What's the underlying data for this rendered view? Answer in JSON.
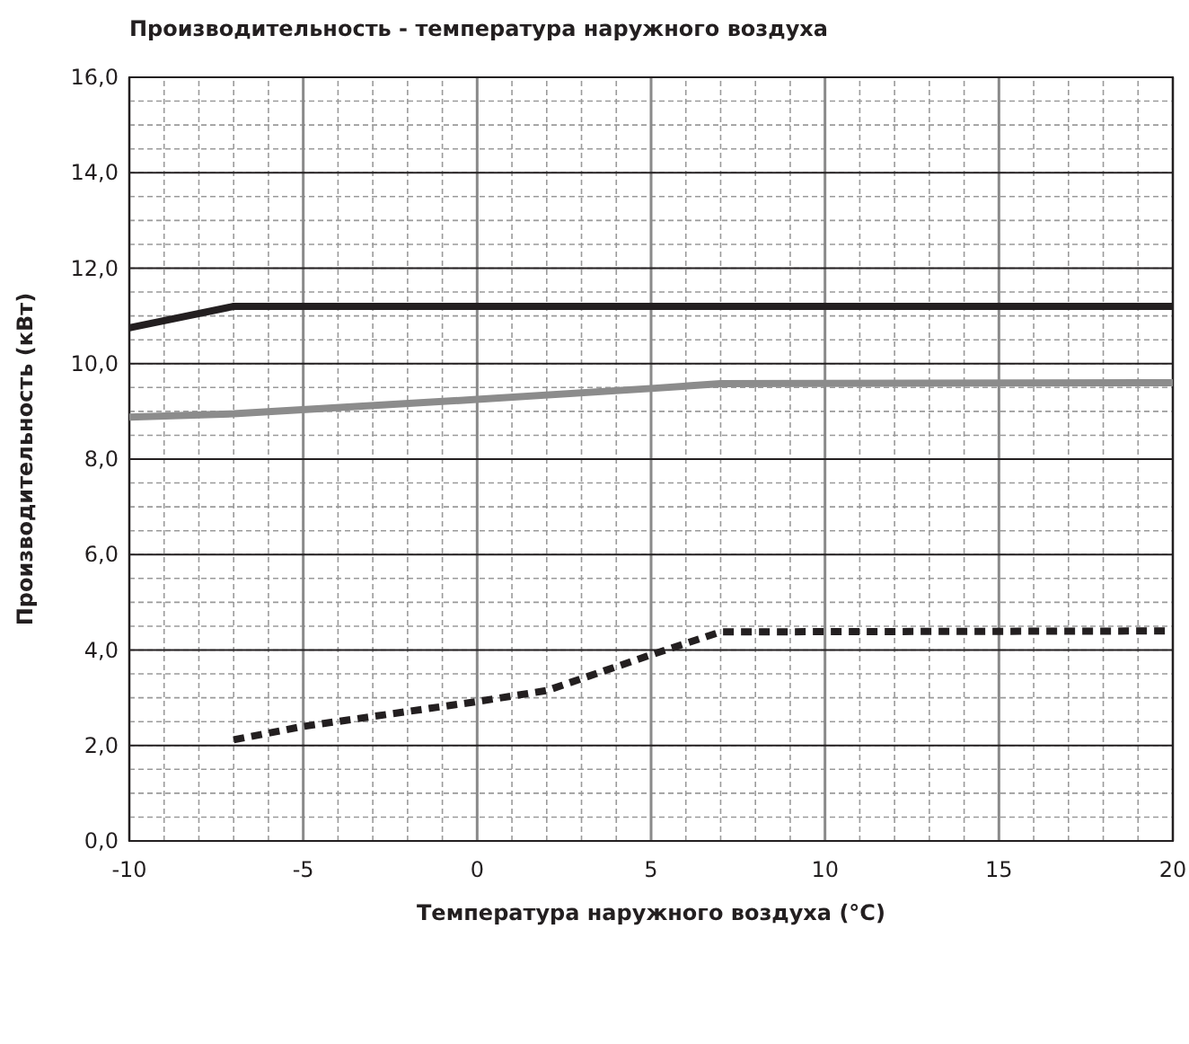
{
  "chart_data": {
    "type": "line",
    "title": "Производительность - температура наружного воздуха",
    "xlabel": "Температура наружного воздуха (°C)",
    "ylabel": "Производительность (кВт)",
    "xlim": [
      -10,
      20
    ],
    "xticks": [
      -10,
      -5,
      0,
      5,
      10,
      15,
      20
    ],
    "ylim": [
      0,
      16
    ],
    "yticks": [
      {
        "value": 0,
        "label": "0,0"
      },
      {
        "value": 2,
        "label": "2,0"
      },
      {
        "value": 4,
        "label": "4,0"
      },
      {
        "value": 6,
        "label": "6,0"
      },
      {
        "value": 8,
        "label": "8,0"
      },
      {
        "value": 10,
        "label": "10,0"
      },
      {
        "value": 12,
        "label": "12,0"
      },
      {
        "value": 14,
        "label": "14,0"
      },
      {
        "value": 16,
        "label": "16,0"
      }
    ],
    "grid": true,
    "marker": "none",
    "series": [
      {
        "color": "#231f20",
        "line_style": "solid",
        "x": [
          -10,
          -7,
          20
        ],
        "values": [
          10.75,
          11.2,
          11.2
        ]
      },
      {
        "color": "#8c8c8c",
        "line_style": "solid",
        "x": [
          -10,
          -7,
          0,
          5,
          7,
          20
        ],
        "values": [
          8.88,
          8.95,
          9.25,
          9.48,
          9.58,
          9.6
        ]
      },
      {
        "color": "#231f20",
        "line_style": "dashed",
        "x": [
          -7,
          -5,
          0,
          2,
          5,
          7,
          20
        ],
        "values": [
          2.12,
          2.4,
          2.92,
          3.15,
          3.9,
          4.38,
          4.4
        ]
      }
    ]
  }
}
